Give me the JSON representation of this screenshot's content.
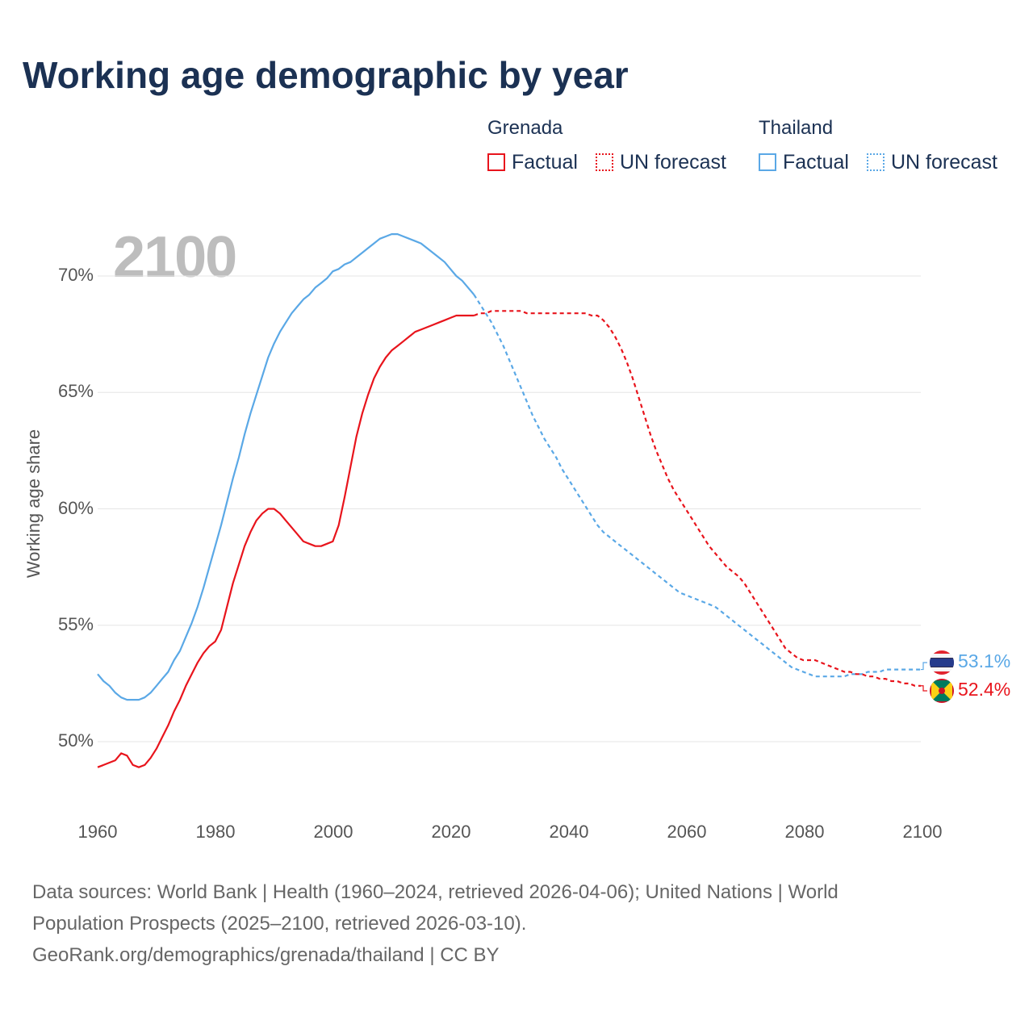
{
  "title": "Working age demographic by year",
  "current_year_label": "2100",
  "legend": {
    "groups": [
      {
        "country": "Grenada",
        "color": "#e8141c",
        "factual_label": "Factual",
        "forecast_label": "UN forecast"
      },
      {
        "country": "Thailand",
        "color": "#5aa8e6",
        "factual_label": "Factual",
        "forecast_label": "UN forecast"
      }
    ]
  },
  "end_labels": {
    "thailand": "53.1%",
    "grenada": "52.4%"
  },
  "source": {
    "line1": "Data sources: World Bank | Health (1960–2024, retrieved 2026-04-06); United Nations | World",
    "line2": "Population Prospects (2025–2100, retrieved 2026-03-10).",
    "line3": "GeoRank.org/demographics/grenada/thailand | CC BY"
  },
  "colors": {
    "grenada": "#e8141c",
    "thailand": "#5aa8e6",
    "title": "#1b3153",
    "grid": "#e6e6e6",
    "axis_text": "#555555"
  },
  "chart_data": {
    "type": "line",
    "title": "Working age demographic by year",
    "xlabel": "",
    "ylabel": "Working age share",
    "xlim": [
      1960,
      2100
    ],
    "ylim": [
      47.5,
      72.5
    ],
    "x_ticks": [
      1960,
      1980,
      2000,
      2020,
      2040,
      2060,
      2080,
      2100
    ],
    "x_tick_labels": [
      "1960",
      "1980",
      "2000",
      "2020",
      "2040",
      "2060",
      "2080",
      "2100"
    ],
    "y_ticks": [
      50,
      55,
      60,
      65,
      70
    ],
    "y_tick_labels": [
      "50%",
      "55%",
      "60%",
      "65%",
      "70%"
    ],
    "grid": true,
    "factual_range": [
      1960,
      2024
    ],
    "forecast_range": [
      2024,
      2100
    ],
    "series": [
      {
        "name": "Thailand",
        "color": "#5aa8e6",
        "points": [
          [
            1960,
            52.9
          ],
          [
            1961,
            52.6
          ],
          [
            1962,
            52.4
          ],
          [
            1963,
            52.1
          ],
          [
            1964,
            51.9
          ],
          [
            1965,
            51.8
          ],
          [
            1966,
            51.8
          ],
          [
            1967,
            51.8
          ],
          [
            1968,
            51.9
          ],
          [
            1969,
            52.1
          ],
          [
            1970,
            52.4
          ],
          [
            1971,
            52.7
          ],
          [
            1972,
            53.0
          ],
          [
            1973,
            53.5
          ],
          [
            1974,
            53.9
          ],
          [
            1975,
            54.5
          ],
          [
            1976,
            55.1
          ],
          [
            1977,
            55.8
          ],
          [
            1978,
            56.6
          ],
          [
            1979,
            57.5
          ],
          [
            1980,
            58.4
          ],
          [
            1981,
            59.3
          ],
          [
            1982,
            60.3
          ],
          [
            1983,
            61.3
          ],
          [
            1984,
            62.2
          ],
          [
            1985,
            63.2
          ],
          [
            1986,
            64.1
          ],
          [
            1987,
            64.9
          ],
          [
            1988,
            65.7
          ],
          [
            1989,
            66.5
          ],
          [
            1990,
            67.1
          ],
          [
            1991,
            67.6
          ],
          [
            1992,
            68.0
          ],
          [
            1993,
            68.4
          ],
          [
            1994,
            68.7
          ],
          [
            1995,
            69.0
          ],
          [
            1996,
            69.2
          ],
          [
            1997,
            69.5
          ],
          [
            1998,
            69.7
          ],
          [
            1999,
            69.9
          ],
          [
            2000,
            70.2
          ],
          [
            2001,
            70.3
          ],
          [
            2002,
            70.5
          ],
          [
            2003,
            70.6
          ],
          [
            2004,
            70.8
          ],
          [
            2005,
            71.0
          ],
          [
            2006,
            71.2
          ],
          [
            2007,
            71.4
          ],
          [
            2008,
            71.6
          ],
          [
            2009,
            71.7
          ],
          [
            2010,
            71.8
          ],
          [
            2011,
            71.8
          ],
          [
            2012,
            71.7
          ],
          [
            2013,
            71.6
          ],
          [
            2014,
            71.5
          ],
          [
            2015,
            71.4
          ],
          [
            2016,
            71.2
          ],
          [
            2017,
            71.0
          ],
          [
            2018,
            70.8
          ],
          [
            2019,
            70.6
          ],
          [
            2020,
            70.3
          ],
          [
            2021,
            70.0
          ],
          [
            2022,
            69.8
          ],
          [
            2023,
            69.5
          ],
          [
            2024,
            69.2
          ],
          [
            2025,
            68.8
          ],
          [
            2026,
            68.4
          ],
          [
            2027,
            68.0
          ],
          [
            2028,
            67.5
          ],
          [
            2029,
            67.0
          ],
          [
            2030,
            66.4
          ],
          [
            2031,
            65.8
          ],
          [
            2032,
            65.2
          ],
          [
            2033,
            64.6
          ],
          [
            2034,
            64.0
          ],
          [
            2035,
            63.5
          ],
          [
            2036,
            63.0
          ],
          [
            2037,
            62.6
          ],
          [
            2038,
            62.2
          ],
          [
            2039,
            61.7
          ],
          [
            2040,
            61.3
          ],
          [
            2041,
            60.9
          ],
          [
            2042,
            60.5
          ],
          [
            2043,
            60.1
          ],
          [
            2044,
            59.7
          ],
          [
            2045,
            59.3
          ],
          [
            2046,
            59.0
          ],
          [
            2047,
            58.8
          ],
          [
            2048,
            58.6
          ],
          [
            2049,
            58.4
          ],
          [
            2050,
            58.2
          ],
          [
            2051,
            58.0
          ],
          [
            2052,
            57.8
          ],
          [
            2053,
            57.6
          ],
          [
            2054,
            57.4
          ],
          [
            2055,
            57.2
          ],
          [
            2056,
            57.0
          ],
          [
            2057,
            56.8
          ],
          [
            2058,
            56.6
          ],
          [
            2059,
            56.4
          ],
          [
            2060,
            56.3
          ],
          [
            2061,
            56.2
          ],
          [
            2062,
            56.1
          ],
          [
            2063,
            56.0
          ],
          [
            2064,
            55.9
          ],
          [
            2065,
            55.8
          ],
          [
            2066,
            55.6
          ],
          [
            2067,
            55.4
          ],
          [
            2068,
            55.2
          ],
          [
            2069,
            55.0
          ],
          [
            2070,
            54.8
          ],
          [
            2071,
            54.6
          ],
          [
            2072,
            54.4
          ],
          [
            2073,
            54.2
          ],
          [
            2074,
            54.0
          ],
          [
            2075,
            53.8
          ],
          [
            2076,
            53.6
          ],
          [
            2077,
            53.4
          ],
          [
            2078,
            53.2
          ],
          [
            2079,
            53.1
          ],
          [
            2080,
            53.0
          ],
          [
            2081,
            52.9
          ],
          [
            2082,
            52.8
          ],
          [
            2083,
            52.8
          ],
          [
            2084,
            52.8
          ],
          [
            2085,
            52.8
          ],
          [
            2086,
            52.8
          ],
          [
            2087,
            52.8
          ],
          [
            2088,
            52.9
          ],
          [
            2089,
            52.9
          ],
          [
            2090,
            52.9
          ],
          [
            2091,
            53.0
          ],
          [
            2092,
            53.0
          ],
          [
            2093,
            53.0
          ],
          [
            2094,
            53.1
          ],
          [
            2095,
            53.1
          ],
          [
            2096,
            53.1
          ],
          [
            2097,
            53.1
          ],
          [
            2098,
            53.1
          ],
          [
            2099,
            53.1
          ],
          [
            2100,
            53.1
          ]
        ]
      },
      {
        "name": "Grenada",
        "color": "#e8141c",
        "points": [
          [
            1960,
            48.9
          ],
          [
            1961,
            49.0
          ],
          [
            1962,
            49.1
          ],
          [
            1963,
            49.2
          ],
          [
            1964,
            49.5
          ],
          [
            1965,
            49.4
          ],
          [
            1966,
            49.0
          ],
          [
            1967,
            48.9
          ],
          [
            1968,
            49.0
          ],
          [
            1969,
            49.3
          ],
          [
            1970,
            49.7
          ],
          [
            1971,
            50.2
          ],
          [
            1972,
            50.7
          ],
          [
            1973,
            51.3
          ],
          [
            1974,
            51.8
          ],
          [
            1975,
            52.4
          ],
          [
            1976,
            52.9
          ],
          [
            1977,
            53.4
          ],
          [
            1978,
            53.8
          ],
          [
            1979,
            54.1
          ],
          [
            1980,
            54.3
          ],
          [
            1981,
            54.8
          ],
          [
            1982,
            55.8
          ],
          [
            1983,
            56.8
          ],
          [
            1984,
            57.6
          ],
          [
            1985,
            58.4
          ],
          [
            1986,
            59.0
          ],
          [
            1987,
            59.5
          ],
          [
            1988,
            59.8
          ],
          [
            1989,
            60.0
          ],
          [
            1990,
            60.0
          ],
          [
            1991,
            59.8
          ],
          [
            1992,
            59.5
          ],
          [
            1993,
            59.2
          ],
          [
            1994,
            58.9
          ],
          [
            1995,
            58.6
          ],
          [
            1996,
            58.5
          ],
          [
            1997,
            58.4
          ],
          [
            1998,
            58.4
          ],
          [
            1999,
            58.5
          ],
          [
            2000,
            58.6
          ],
          [
            2001,
            59.3
          ],
          [
            2002,
            60.5
          ],
          [
            2003,
            61.8
          ],
          [
            2004,
            63.1
          ],
          [
            2005,
            64.1
          ],
          [
            2006,
            64.9
          ],
          [
            2007,
            65.6
          ],
          [
            2008,
            66.1
          ],
          [
            2009,
            66.5
          ],
          [
            2010,
            66.8
          ],
          [
            2011,
            67.0
          ],
          [
            2012,
            67.2
          ],
          [
            2013,
            67.4
          ],
          [
            2014,
            67.6
          ],
          [
            2015,
            67.7
          ],
          [
            2016,
            67.8
          ],
          [
            2017,
            67.9
          ],
          [
            2018,
            68.0
          ],
          [
            2019,
            68.1
          ],
          [
            2020,
            68.2
          ],
          [
            2021,
            68.3
          ],
          [
            2022,
            68.3
          ],
          [
            2023,
            68.3
          ],
          [
            2024,
            68.3
          ],
          [
            2025,
            68.4
          ],
          [
            2026,
            68.4
          ],
          [
            2027,
            68.5
          ],
          [
            2028,
            68.5
          ],
          [
            2029,
            68.5
          ],
          [
            2030,
            68.5
          ],
          [
            2031,
            68.5
          ],
          [
            2032,
            68.5
          ],
          [
            2033,
            68.4
          ],
          [
            2034,
            68.4
          ],
          [
            2035,
            68.4
          ],
          [
            2036,
            68.4
          ],
          [
            2037,
            68.4
          ],
          [
            2038,
            68.4
          ],
          [
            2039,
            68.4
          ],
          [
            2040,
            68.4
          ],
          [
            2041,
            68.4
          ],
          [
            2042,
            68.4
          ],
          [
            2043,
            68.4
          ],
          [
            2044,
            68.3
          ],
          [
            2045,
            68.3
          ],
          [
            2046,
            68.1
          ],
          [
            2047,
            67.8
          ],
          [
            2048,
            67.4
          ],
          [
            2049,
            66.9
          ],
          [
            2050,
            66.3
          ],
          [
            2051,
            65.6
          ],
          [
            2052,
            64.8
          ],
          [
            2053,
            64.0
          ],
          [
            2054,
            63.2
          ],
          [
            2055,
            62.5
          ],
          [
            2056,
            61.9
          ],
          [
            2057,
            61.3
          ],
          [
            2058,
            60.8
          ],
          [
            2059,
            60.4
          ],
          [
            2060,
            60.0
          ],
          [
            2061,
            59.6
          ],
          [
            2062,
            59.2
          ],
          [
            2063,
            58.8
          ],
          [
            2064,
            58.4
          ],
          [
            2065,
            58.1
          ],
          [
            2066,
            57.8
          ],
          [
            2067,
            57.5
          ],
          [
            2068,
            57.3
          ],
          [
            2069,
            57.1
          ],
          [
            2070,
            56.8
          ],
          [
            2071,
            56.4
          ],
          [
            2072,
            56.0
          ],
          [
            2073,
            55.6
          ],
          [
            2074,
            55.2
          ],
          [
            2075,
            54.8
          ],
          [
            2076,
            54.4
          ],
          [
            2077,
            54.0
          ],
          [
            2078,
            53.8
          ],
          [
            2079,
            53.6
          ],
          [
            2080,
            53.5
          ],
          [
            2081,
            53.5
          ],
          [
            2082,
            53.5
          ],
          [
            2083,
            53.4
          ],
          [
            2084,
            53.3
          ],
          [
            2085,
            53.2
          ],
          [
            2086,
            53.1
          ],
          [
            2087,
            53.0
          ],
          [
            2088,
            53.0
          ],
          [
            2089,
            52.9
          ],
          [
            2090,
            52.9
          ],
          [
            2091,
            52.8
          ],
          [
            2092,
            52.8
          ],
          [
            2093,
            52.7
          ],
          [
            2094,
            52.7
          ],
          [
            2095,
            52.6
          ],
          [
            2096,
            52.6
          ],
          [
            2097,
            52.5
          ],
          [
            2098,
            52.5
          ],
          [
            2099,
            52.4
          ],
          [
            2100,
            52.4
          ]
        ]
      }
    ]
  }
}
